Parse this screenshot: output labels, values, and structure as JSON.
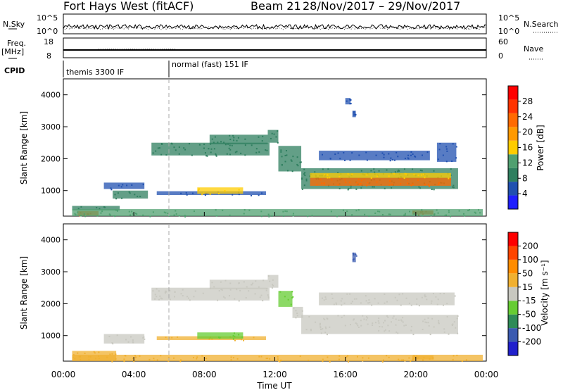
{
  "header": {
    "radar": "Fort Hays West (fitACF)",
    "beam": "Beam 21",
    "dates": "28/Nov/2017 – 29/Nov/2017"
  },
  "panel_labels": {
    "nsky": "N.Sky",
    "nsearch": "N.Search",
    "freq": "Freq.",
    "freq_unit": "[MHz]",
    "nave": "Nave",
    "cpid": "CPID"
  },
  "cpid_modes": [
    "themis 3300 IF",
    "normal (fast) 151 IF"
  ],
  "noise_ticks_left": [
    "10^5",
    "10^0"
  ],
  "noise_ticks_right": [
    "10^5",
    "10^0"
  ],
  "freq_ticks": [
    "18",
    "8"
  ],
  "nave_ticks": [
    "60",
    "0"
  ],
  "colors": {
    "power_scale": [
      "#1f1fff",
      "#2050b0",
      "#2f7f5f",
      "#50a070",
      "#ffcc00",
      "#ff9900",
      "#ff6a00",
      "#ff3300",
      "#ff0000"
    ],
    "velocity_scale": [
      "#2020cc",
      "#3a5ab0",
      "#2e8b57",
      "#66cc33",
      "#c8c8c0",
      "#f0b030",
      "#ff8c00",
      "#ff4500",
      "#ff0000"
    ],
    "cpid_divider": "#000000",
    "dash": "#aaaaaa"
  },
  "chart_data": [
    {
      "type": "heatmap",
      "name": "power",
      "ylabel": "Slant Range [km]",
      "colorbar_label": "Power [dB]",
      "colorbar_ticks": [
        "4",
        "8",
        "12",
        "16",
        "20",
        "24",
        "28"
      ],
      "yticks": [
        "1000",
        "2000",
        "3000",
        "4000"
      ],
      "ylim": [
        200,
        4500
      ],
      "xlim_hours": [
        0,
        24
      ],
      "cpid_change_hour": 6,
      "regions": [
        {
          "t0": 0.8,
          "t1": 2.0,
          "r0": 220,
          "r1": 360,
          "color": "#ff6a00"
        },
        {
          "t0": 0.5,
          "t1": 3.2,
          "r0": 380,
          "r1": 520,
          "color": "#2f7f5f"
        },
        {
          "t0": 2.3,
          "t1": 4.6,
          "r0": 1050,
          "r1": 1250,
          "color": "#2050b0"
        },
        {
          "t0": 2.8,
          "t1": 4.8,
          "r0": 750,
          "r1": 1000,
          "color": "#2f7f5f"
        },
        {
          "t0": 5.3,
          "t1": 11.5,
          "r0": 860,
          "r1": 980,
          "color": "#2050b0"
        },
        {
          "t0": 7.6,
          "t1": 10.2,
          "r0": 900,
          "r1": 1100,
          "color": "#ffcc00"
        },
        {
          "t0": 5.0,
          "t1": 11.7,
          "r0": 2100,
          "r1": 2500,
          "color": "#2f7f5f"
        },
        {
          "t0": 8.3,
          "t1": 11.6,
          "r0": 2450,
          "r1": 2750,
          "color": "#2f7f5f"
        },
        {
          "t0": 11.6,
          "t1": 12.2,
          "r0": 2500,
          "r1": 2900,
          "color": "#2f7f5f"
        },
        {
          "t0": 12.2,
          "t1": 13.5,
          "r0": 1600,
          "r1": 2400,
          "color": "#2f7f5f"
        },
        {
          "t0": 13.5,
          "t1": 22.4,
          "r0": 1050,
          "r1": 1700,
          "color": "#2f7f5f"
        },
        {
          "t0": 14.0,
          "t1": 22.0,
          "r0": 1150,
          "r1": 1400,
          "color": "#ff6a00"
        },
        {
          "t0": 14.0,
          "t1": 22.0,
          "r0": 1400,
          "r1": 1550,
          "color": "#ffcc00"
        },
        {
          "t0": 14.5,
          "t1": 20.8,
          "r0": 1950,
          "r1": 2250,
          "color": "#2050b0"
        },
        {
          "t0": 21.2,
          "t1": 22.3,
          "r0": 1900,
          "r1": 2500,
          "color": "#2050b0"
        },
        {
          "t0": 16.4,
          "t1": 16.6,
          "r0": 3300,
          "r1": 3500,
          "color": "#2050b0"
        },
        {
          "t0": 19.8,
          "t1": 21.0,
          "r0": 250,
          "r1": 380,
          "color": "#ff6a00"
        },
        {
          "t0": 0.5,
          "t1": 23.8,
          "r0": 200,
          "r1": 420,
          "color": "#50a070"
        },
        {
          "t0": 16.0,
          "t1": 16.3,
          "r0": 3700,
          "r1": 3900,
          "color": "#2050b0"
        }
      ]
    },
    {
      "type": "heatmap",
      "name": "velocity",
      "ylabel": "Slant Range [km]",
      "colorbar_label": "Velocity [m s⁻¹]",
      "colorbar_ticks": [
        "-200",
        "-100",
        "-50",
        "-15",
        "15",
        "50",
        "100",
        "200"
      ],
      "yticks": [
        "1000",
        "2000",
        "3000",
        "4000"
      ],
      "ylim": [
        200,
        4500
      ],
      "xlim_hours": [
        0,
        24
      ],
      "cpid_change_hour": 6,
      "regions": [
        {
          "t0": 0.5,
          "t1": 3.0,
          "r0": 220,
          "r1": 520,
          "color": "#f0b030"
        },
        {
          "t0": 2.3,
          "t1": 4.6,
          "r0": 750,
          "r1": 1050,
          "color": "#c8c8c0"
        },
        {
          "t0": 5.3,
          "t1": 11.5,
          "r0": 860,
          "r1": 980,
          "color": "#f0b030"
        },
        {
          "t0": 7.6,
          "t1": 10.2,
          "r0": 900,
          "r1": 1100,
          "color": "#66cc33"
        },
        {
          "t0": 5.0,
          "t1": 11.7,
          "r0": 2100,
          "r1": 2500,
          "color": "#c8c8c0"
        },
        {
          "t0": 8.3,
          "t1": 11.6,
          "r0": 2450,
          "r1": 2750,
          "color": "#c8c8c0"
        },
        {
          "t0": 11.6,
          "t1": 12.2,
          "r0": 2500,
          "r1": 2900,
          "color": "#c8c8c0"
        },
        {
          "t0": 12.2,
          "t1": 13.0,
          "r0": 1900,
          "r1": 2400,
          "color": "#66cc33"
        },
        {
          "t0": 13.0,
          "t1": 13.6,
          "r0": 1550,
          "r1": 1900,
          "color": "#c8c8c0"
        },
        {
          "t0": 13.5,
          "t1": 22.4,
          "r0": 1050,
          "r1": 1650,
          "color": "#c8c8c0"
        },
        {
          "t0": 14.5,
          "t1": 22.2,
          "r0": 1950,
          "r1": 2350,
          "color": "#c8c8c0"
        },
        {
          "t0": 0.5,
          "t1": 23.8,
          "r0": 200,
          "r1": 400,
          "color": "#f0b030"
        },
        {
          "t0": 19.8,
          "t1": 21.0,
          "r0": 250,
          "r1": 380,
          "color": "#f0b030"
        },
        {
          "t0": 16.4,
          "t1": 16.6,
          "r0": 3300,
          "r1": 3600,
          "color": "#3a5ab0"
        }
      ]
    }
  ],
  "x_axis": {
    "ticks": [
      "00:00",
      "04:00",
      "08:00",
      "12:00",
      "16:00",
      "20:00",
      "00:00"
    ],
    "label": "Time UT"
  }
}
